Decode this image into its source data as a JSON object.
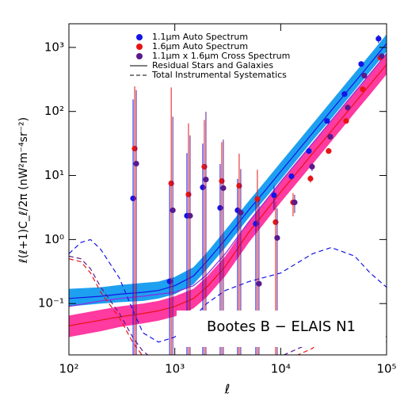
{
  "chart_data": {
    "type": "scatter",
    "xlabel": "ℓ",
    "ylabel": "ℓ(ℓ+1)C_ℓ/2π   (nW²m⁻⁴sr⁻²)",
    "annotation": "Bootes B  −  ELAIS N1",
    "xlog": true,
    "ylog": true,
    "xlim": [
      100,
      100000
    ],
    "ylim": [
      0.0158,
      2340
    ],
    "xticks": [
      {
        "value": 100,
        "label": "10²"
      },
      {
        "value": 1000,
        "label": "10³"
      },
      {
        "value": 10000,
        "label": "10⁴"
      },
      {
        "value": 100000,
        "label": "10⁵"
      }
    ],
    "yticks": [
      {
        "value": 0.1,
        "label": "10⁻¹"
      },
      {
        "value": 1,
        "label": "10⁰"
      },
      {
        "value": 10,
        "label": "10¹"
      },
      {
        "value": 100,
        "label": "10²"
      },
      {
        "value": 1000,
        "label": "10³"
      }
    ],
    "x": [
      418,
      925,
      1347,
      1901,
      2776,
      4055,
      6026,
      8954,
      13090,
      19110,
      28380,
      41500,
      59570,
      86900
    ],
    "series": [
      {
        "name": "1.1μm Auto Spectrum",
        "color": "#1414e6",
        "values": [
          4.39,
          0.222,
          2.35,
          6.53,
          3.12,
          2.86,
          1.77,
          4.91,
          9.72,
          24.1,
          71.1,
          187,
          550,
          1367
        ],
        "errors": [
          150,
          8,
          20,
          25,
          12,
          6,
          3,
          2,
          1,
          2,
          5,
          12,
          30,
          200
        ]
      },
      {
        "name": "1.6μm Auto Spectrum",
        "color": "#e61414",
        "values": [
          26.3,
          7.53,
          5.06,
          13.7,
          8.2,
          6.91,
          4.26,
          1.87,
          3.8,
          8.93,
          24.1,
          71.1,
          222,
          692
        ],
        "errors": [
          220,
          230,
          60,
          60,
          25,
          15,
          8,
          2,
          1.5,
          1.2,
          2,
          5,
          12,
          40
        ]
      },
      {
        "name": "1.1μm x 1.6μm Cross Spectrum",
        "color": "#5a1a8c",
        "values": [
          15.3,
          2.86,
          2.35,
          8.67,
          6.35,
          2.63,
          0.204,
          1.06,
          3.8,
          13.7,
          40.3,
          115,
          362,
          729
        ],
        "errors": [
          200,
          80,
          40,
          90,
          30,
          10,
          4,
          2,
          1.2,
          2,
          4,
          10,
          25,
          60
        ]
      }
    ],
    "model_x": [
      100,
      200,
      300,
      500,
      700,
      1000,
      1500,
      2000,
      3000,
      5000,
      7000,
      10000,
      20000,
      30000,
      50000,
      70000,
      100000
    ],
    "bands": [
      {
        "color": "#1ea0f0",
        "lower": [
          0.09,
          0.1,
          0.105,
          0.11,
          0.12,
          0.14,
          0.2,
          0.34,
          0.75,
          2.2,
          4.2,
          8.6,
          35,
          77,
          214,
          420,
          860
        ],
        "upper": [
          0.17,
          0.18,
          0.195,
          0.21,
          0.22,
          0.26,
          0.37,
          0.62,
          1.4,
          4.0,
          7.8,
          16,
          64,
          144,
          400,
          780,
          1600
        ]
      },
      {
        "color": "#ff3aa0",
        "lower": [
          0.03,
          0.037,
          0.043,
          0.049,
          0.054,
          0.063,
          0.084,
          0.126,
          0.27,
          0.9,
          1.8,
          3.8,
          15,
          34,
          95,
          185,
          380
        ],
        "upper": [
          0.065,
          0.08,
          0.09,
          0.1,
          0.11,
          0.13,
          0.17,
          0.26,
          0.55,
          1.9,
          3.8,
          8,
          32,
          71,
          197,
          385,
          780
        ]
      }
    ],
    "models": [
      {
        "color": "#1414e6",
        "values": [
          0.12,
          0.13,
          0.14,
          0.15,
          0.16,
          0.19,
          0.27,
          0.45,
          1.0,
          2.9,
          5.6,
          11.5,
          46,
          103,
          285,
          560,
          1150
        ]
      },
      {
        "color": "#e61414",
        "values": [
          0.045,
          0.055,
          0.062,
          0.07,
          0.077,
          0.09,
          0.12,
          0.18,
          0.38,
          1.3,
          2.6,
          5.5,
          22,
          49,
          136,
          265,
          540
        ]
      },
      {
        "color": "#8a2be2",
        "values": [
          0.09,
          0.11,
          0.12,
          0.13,
          0.14,
          0.15,
          0.19,
          0.28,
          0.6,
          1.9,
          3.8,
          8,
          32,
          72,
          200,
          390,
          800
        ]
      }
    ],
    "systematics_x": [
      100,
      130,
      160,
      200,
      300,
      400,
      500,
      700,
      1000,
      1500,
      2000,
      3000,
      5000,
      10000,
      20000,
      30000,
      50000,
      70000,
      100000
    ],
    "systematics": [
      {
        "color": "#1414e6",
        "values": [
          0.6,
          0.9,
          1.0,
          0.7,
          0.25,
          0.08,
          0.035,
          0.025,
          0.03,
          0.06,
          0.1,
          0.16,
          0.22,
          0.3,
          0.6,
          0.75,
          0.55,
          0.3,
          0.18
        ]
      },
      {
        "color": "#e61414",
        "values": [
          0.5,
          0.45,
          0.3,
          0.15,
          0.06,
          0.025,
          0.015,
          0.01,
          0.01,
          0.012,
          0.013,
          0.013,
          0.012,
          0.012,
          0.02,
          0.045,
          0.03,
          0.04,
          0.025
        ]
      },
      {
        "color": "#5a1a8c",
        "values": [
          0.55,
          0.5,
          0.35,
          0.18,
          0.07,
          0.03,
          0.018,
          0.012,
          0.012,
          0.014,
          0.015,
          0.015,
          0.014,
          0.015,
          0.025,
          0.05,
          0.035,
          0.045,
          0.03
        ]
      }
    ],
    "legend_lines": [
      "Residual Stars and Galaxies",
      "Total Instrumental Systematics"
    ]
  }
}
